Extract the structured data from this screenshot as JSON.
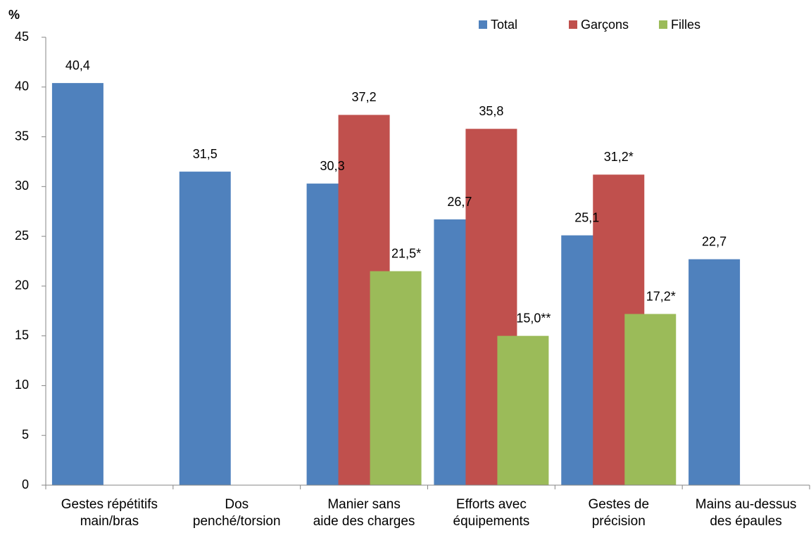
{
  "chart_data": {
    "type": "bar",
    "y_label": "%",
    "categories": [
      "Gestes répétitifs\nmain/bras",
      "Dos\npenché/torsion",
      "Manier sans\naide des charges",
      "Efforts avec\néquipements",
      "Gestes de\nprécision",
      "Mains au-dessus\ndes épaules"
    ],
    "series": [
      {
        "name": "Total",
        "color": "#4f81bd",
        "values": [
          40.4,
          31.5,
          30.3,
          26.7,
          25.1,
          22.7
        ],
        "value_labels": [
          "40,4",
          "31,5",
          "30,3",
          "26,7",
          "25,1",
          "22,7"
        ]
      },
      {
        "name": "Garçons",
        "color": "#c0504d",
        "values": [
          null,
          null,
          37.2,
          35.8,
          31.2,
          null
        ],
        "value_labels": [
          null,
          null,
          "37,2",
          "35,8",
          "31,2*",
          null
        ]
      },
      {
        "name": "Filles",
        "color": "#9bbb59",
        "values": [
          null,
          null,
          21.5,
          15.0,
          17.2,
          null
        ],
        "value_labels": [
          null,
          null,
          "21,5*",
          "15,0**",
          "17,2*",
          null
        ]
      }
    ],
    "ylim": [
      0,
      45
    ],
    "yticks": [
      0,
      5,
      10,
      15,
      20,
      25,
      30,
      35,
      40,
      45
    ],
    "legend": "top-right"
  }
}
